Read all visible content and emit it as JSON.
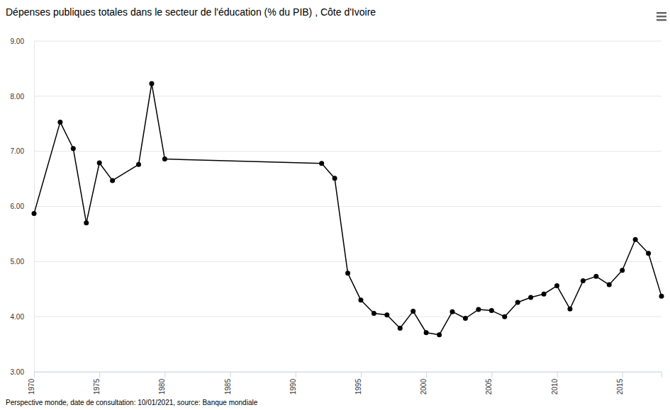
{
  "chart_data": {
    "type": "line",
    "title": "Dépenses publiques totales dans le secteur de l'éducation (% du PIB) , Côte d'Ivoire",
    "caption": "Perspective monde, date de consultation: 10/01/2021, source: Banque mondiale",
    "x": [
      1970,
      1972,
      1973,
      1974,
      1975,
      1976,
      1978,
      1979,
      1980,
      1992,
      1993,
      1994,
      1995,
      1996,
      1997,
      1998,
      1999,
      2000,
      2001,
      2002,
      2003,
      2004,
      2005,
      2006,
      2007,
      2008,
      2009,
      2010,
      2011,
      2012,
      2013,
      2014,
      2015,
      2016,
      2017,
      2018
    ],
    "values": [
      5.87,
      7.53,
      7.05,
      5.7,
      6.79,
      6.47,
      6.76,
      8.23,
      6.86,
      6.78,
      6.51,
      4.79,
      4.3,
      4.06,
      4.03,
      3.79,
      4.1,
      3.71,
      3.67,
      4.09,
      3.97,
      4.13,
      4.11,
      4.0,
      4.26,
      4.35,
      4.41,
      4.56,
      4.14,
      4.65,
      4.73,
      4.58,
      4.84,
      5.4,
      5.15,
      4.37
    ],
    "color": "#000000",
    "marker": "circle",
    "xlim": [
      1970,
      2018
    ],
    "xticks": [
      1970,
      1975,
      1980,
      1985,
      1990,
      1995,
      2000,
      2005,
      2010,
      2015
    ],
    "ylim": [
      3,
      9
    ],
    "yticks": [
      {
        "value": 3,
        "label": "3.00"
      },
      {
        "value": 4,
        "label": "4.00"
      },
      {
        "value": 5,
        "label": "5.00"
      },
      {
        "value": 6,
        "label": "6.00"
      },
      {
        "value": 7,
        "label": "7.00"
      },
      {
        "value": 8,
        "label": "8.00"
      },
      {
        "value": 9,
        "label": "9.00"
      }
    ],
    "grid": true
  }
}
